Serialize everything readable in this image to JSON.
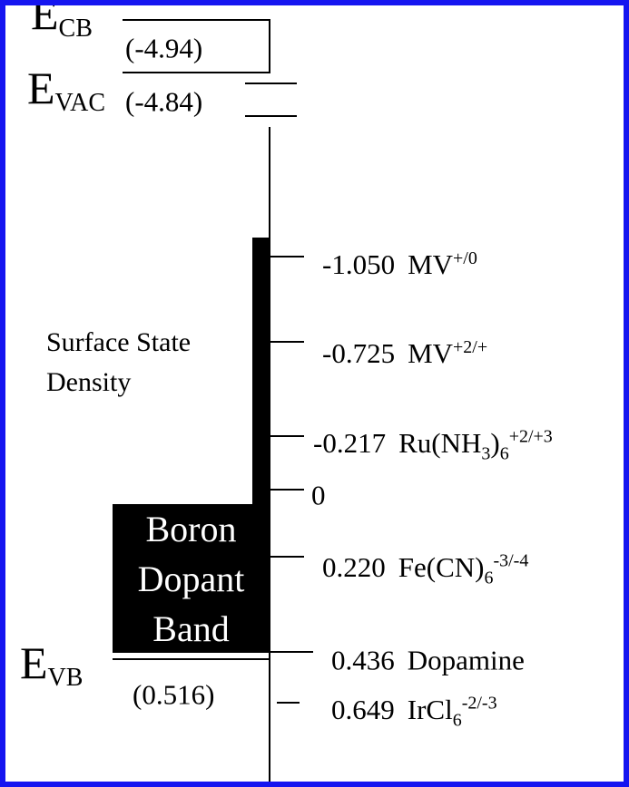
{
  "top": {
    "ecb": {
      "symbol": "E",
      "subscript": "CB",
      "value": "(-4.94)"
    },
    "evac": {
      "symbol": "E",
      "subscript": "VAC",
      "value": "(-4.84)"
    }
  },
  "levels": [
    {
      "value": "-1.050",
      "label": [
        "MV",
        "+/0"
      ]
    },
    {
      "value": "-0.725",
      "label": [
        "MV",
        "+2/+"
      ]
    },
    {
      "value": "-0.217",
      "label": [
        "Ru(NH",
        "3",
        ")",
        "6",
        "+2/+3"
      ]
    },
    {
      "value": "0"
    },
    {
      "value": "0.220",
      "label": [
        "Fe(CN)",
        "6",
        "-3/-4"
      ]
    },
    {
      "value": "0.436",
      "label": [
        "Dopamine"
      ]
    },
    {
      "value": "0.649",
      "label": [
        "IrCl",
        "6",
        "-2/-3"
      ]
    }
  ],
  "surface_state": [
    "Surface State",
    "Density"
  ],
  "band": [
    "Boron",
    "Dopant",
    "Band"
  ],
  "evb": {
    "symbol": "E",
    "subscript": "VB",
    "value": "(0.516)"
  }
}
